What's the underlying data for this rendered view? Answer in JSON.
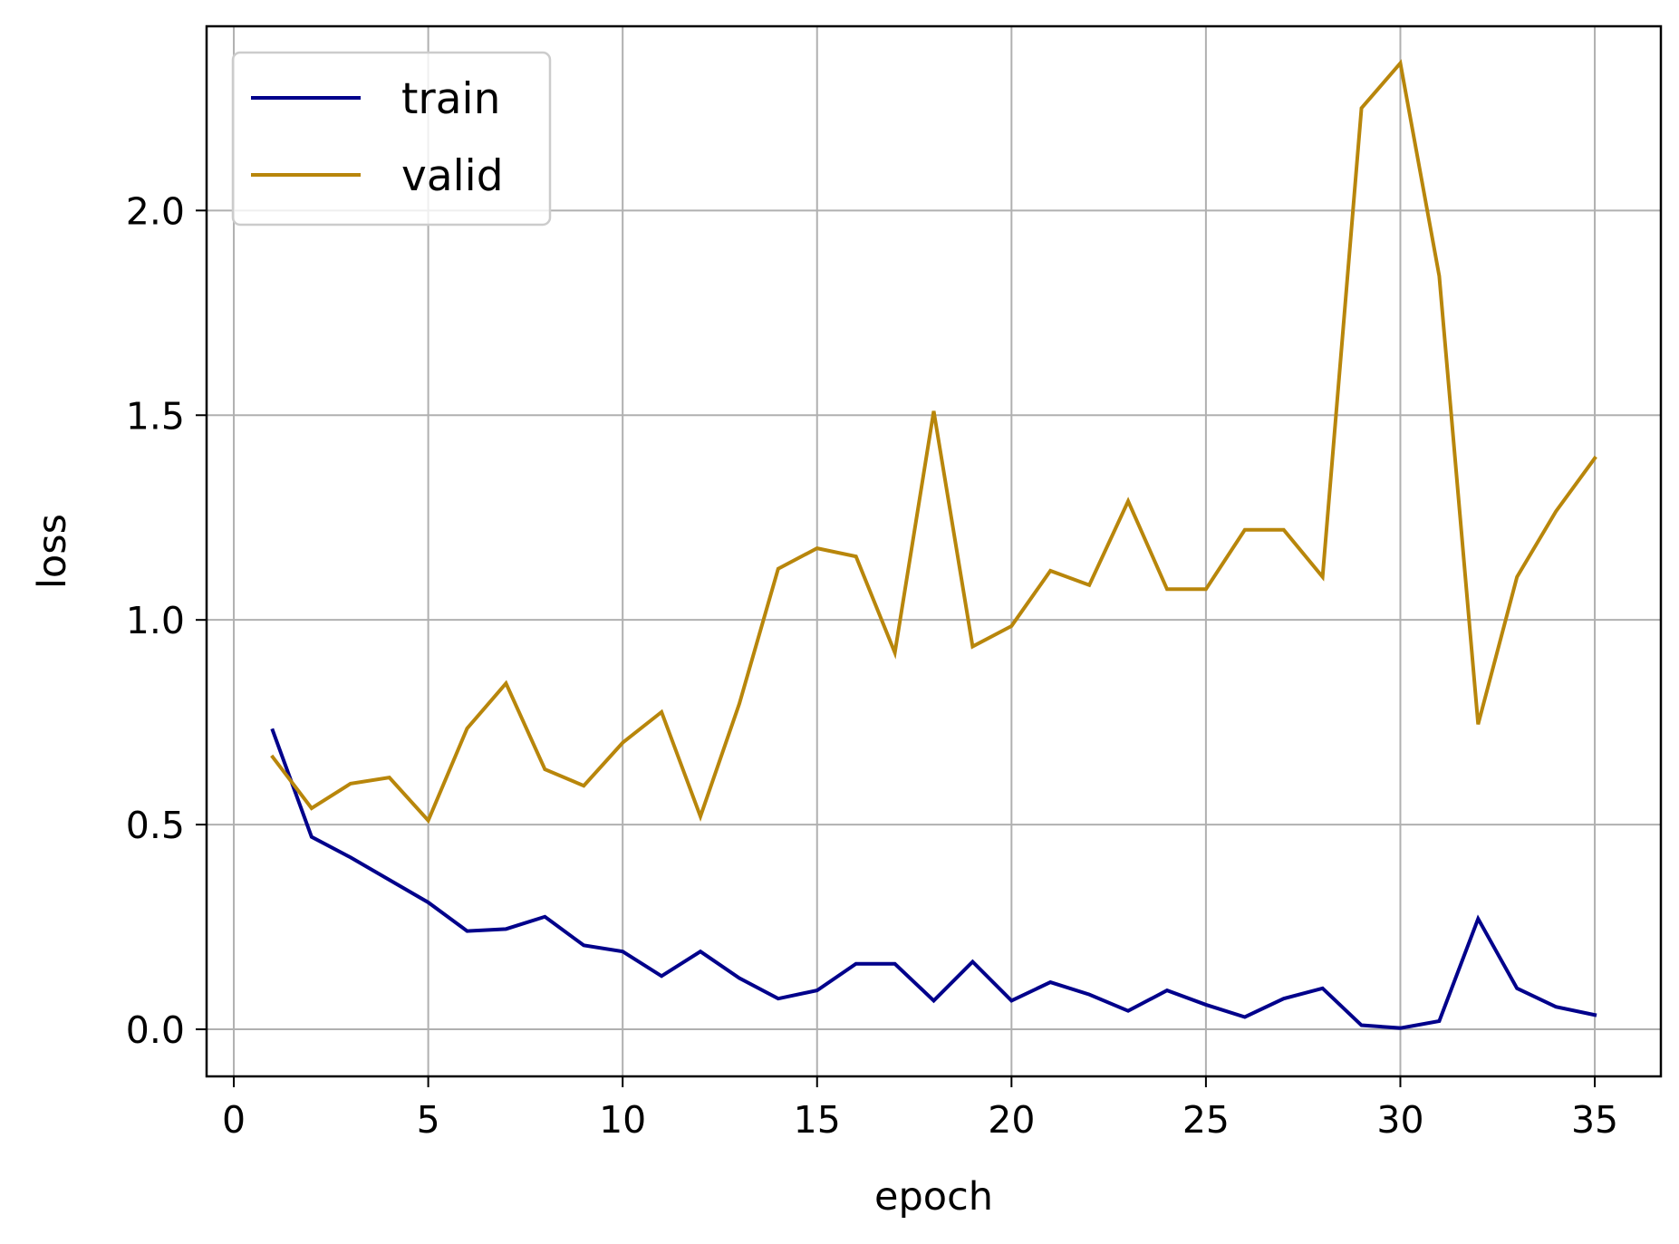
{
  "chart_data": {
    "type": "line",
    "title": "",
    "xlabel": "epoch",
    "ylabel": "loss",
    "xlim": [
      -0.7,
      36.7
    ],
    "ylim": [
      -0.115,
      2.45
    ],
    "xticks": [
      0,
      5,
      10,
      15,
      20,
      25,
      30,
      35
    ],
    "xtick_labels": [
      "0",
      "5",
      "10",
      "15",
      "20",
      "25",
      "30",
      "35"
    ],
    "yticks": [
      0.0,
      0.5,
      1.0,
      1.5,
      2.0
    ],
    "ytick_labels": [
      "0.0",
      "0.5",
      "1.0",
      "1.5",
      "2.0"
    ],
    "grid": true,
    "legend_position": "top-left",
    "x": [
      1,
      2,
      3,
      4,
      5,
      6,
      7,
      8,
      9,
      10,
      11,
      12,
      13,
      14,
      15,
      16,
      17,
      18,
      19,
      20,
      21,
      22,
      23,
      24,
      25,
      26,
      27,
      28,
      29,
      30,
      31,
      32,
      33,
      34,
      35
    ],
    "series": [
      {
        "name": "train",
        "color": "#00008b",
        "values": [
          0.73,
          0.47,
          0.42,
          0.365,
          0.31,
          0.24,
          0.245,
          0.275,
          0.205,
          0.19,
          0.13,
          0.19,
          0.125,
          0.075,
          0.095,
          0.16,
          0.16,
          0.07,
          0.165,
          0.07,
          0.115,
          0.085,
          0.045,
          0.095,
          0.06,
          0.03,
          0.075,
          0.1,
          0.01,
          0.003,
          0.02,
          0.27,
          0.1,
          0.055,
          0.035
        ]
      },
      {
        "name": "valid",
        "color": "#b8860b",
        "values": [
          0.665,
          0.54,
          0.6,
          0.615,
          0.51,
          0.735,
          0.845,
          0.635,
          0.595,
          0.7,
          0.775,
          0.52,
          0.795,
          1.125,
          1.175,
          1.155,
          0.92,
          1.51,
          0.935,
          0.985,
          1.12,
          1.085,
          1.29,
          1.075,
          1.075,
          1.22,
          1.22,
          1.105,
          2.25,
          2.36,
          1.84,
          0.745,
          1.105,
          1.265,
          1.395
        ]
      }
    ]
  }
}
